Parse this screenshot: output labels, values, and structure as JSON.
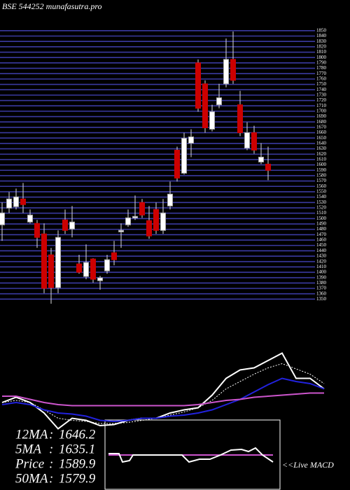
{
  "chart_data": [
    {
      "type": "candlestick",
      "title": "BSE 544252  munafasutra.pro",
      "open": [
        1488.4,
        1519.6,
        1522.2,
        1536.5,
        1493.6,
        1491,
        1471.5,
        1432.5,
        1371.4,
        1497.5,
        1480.6,
        1415.6,
        1392.2,
        1424.7,
        1384.4,
        1402.6,
        1436.4,
        1475.4,
        1488.4,
        1501.4,
        1530,
        1496.2,
        1517,
        1478,
        1523.5,
        1627.5,
        1584.6,
        1640.5,
        1790,
        1751,
        1666.5,
        1712,
        1751,
        1796.5,
        1712,
        1631.4,
        1660,
        1605.4,
        1601.5
      ],
      "high": [
        1530,
        1549.5,
        1556,
        1566.4,
        1517,
        1497.5,
        1491,
        1445.5,
        1478,
        1517,
        1523.5,
        1432.5,
        1452,
        1426,
        1393.5,
        1432.5,
        1458.5,
        1491,
        1517,
        1543,
        1536.5,
        1523.5,
        1530,
        1536.5,
        1569,
        1634,
        1660,
        1666.5,
        1796.5,
        1757.5,
        1712,
        1751,
        1835.5,
        1848.5,
        1738,
        1679.5,
        1673,
        1640.5,
        1634
      ],
      "low": [
        1458.5,
        1510.5,
        1517,
        1510.5,
        1491,
        1445.5,
        1361,
        1341.5,
        1361,
        1471.5,
        1465,
        1397.4,
        1387,
        1380.5,
        1367.5,
        1397.4,
        1413,
        1445.5,
        1484.5,
        1497.5,
        1501.4,
        1462.4,
        1471.5,
        1471.5,
        1517,
        1569,
        1582,
        1614.5,
        1699,
        1660,
        1662.6,
        1705.5,
        1744.5,
        1751,
        1653.5,
        1627.5,
        1621,
        1601.5,
        1571.6
      ],
      "close": [
        1510.5,
        1536.5,
        1540.4,
        1526.1,
        1506.6,
        1465,
        1370.1,
        1371.4,
        1465,
        1478,
        1493.6,
        1400,
        1418.2,
        1387,
        1389.6,
        1423.4,
        1423.4,
        1478,
        1501.4,
        1504,
        1506.6,
        1467.6,
        1478,
        1510.5,
        1545.6,
        1575.5,
        1649.6,
        1652.2,
        1705.5,
        1669.1,
        1699,
        1725,
        1796.5,
        1757.5,
        1660,
        1660,
        1627.5,
        1614.5,
        1589.9
      ],
      "up_color": "#ffffff",
      "down_color": "#cc0000",
      "grid": true,
      "grid_color": "#3a3aa0",
      "ylim": [
        1340,
        1855
      ],
      "yticks": [
        1350,
        1360,
        1370,
        1380,
        1390,
        1400,
        1410,
        1420,
        1430,
        1440,
        1450,
        1460,
        1470,
        1480,
        1490,
        1500,
        1510,
        1520,
        1530,
        1540,
        1550,
        1560,
        1570,
        1580,
        1590,
        1600,
        1610,
        1620,
        1630,
        1640,
        1650,
        1660,
        1670,
        1680,
        1690,
        1700,
        1710,
        1720,
        1730,
        1740,
        1750,
        1760,
        1770,
        1780,
        1790,
        1800,
        1810,
        1820,
        1830,
        1840,
        1850
      ]
    },
    {
      "type": "line",
      "ylim": [
        0,
        100
      ],
      "xlim": [
        0,
        23
      ],
      "x": [
        0,
        1,
        2,
        3,
        4,
        5,
        6,
        7,
        8,
        9,
        10,
        11,
        12,
        13,
        14,
        15,
        16,
        17,
        18,
        19,
        20,
        21,
        22,
        23
      ],
      "series": [
        {
          "color": "#ffffff",
          "dash": false,
          "values": [
            30,
            35,
            30,
            20,
            5,
            15,
            13,
            8,
            9,
            13,
            15,
            15,
            20,
            23,
            25,
            37,
            53,
            61,
            63,
            70,
            77,
            53,
            53,
            43
          ]
        },
        {
          "color": "#ffffff",
          "dash": true,
          "values": [
            30,
            32,
            30,
            23,
            15,
            13,
            12,
            10,
            10,
            11,
            13,
            15,
            18,
            21,
            25,
            32,
            43,
            50,
            57,
            63,
            67,
            62,
            57,
            48
          ]
        },
        {
          "color": "#2222dd",
          "dash": false,
          "values": [
            28,
            30,
            28,
            23,
            20,
            19,
            17,
            13,
            12,
            13,
            15,
            15,
            17,
            18,
            20,
            23,
            28,
            33,
            40,
            47,
            53,
            50,
            48,
            43
          ]
        },
        {
          "color": "#cc55cc",
          "dash": false,
          "values": [
            36,
            36,
            33,
            30,
            28,
            27,
            27,
            27,
            27,
            27,
            27,
            27,
            27,
            27,
            28,
            30,
            32,
            33,
            35,
            36,
            37,
            38,
            39,
            39
          ]
        }
      ]
    },
    {
      "type": "line",
      "title": "<<Live MACD",
      "xlim": [
        0,
        250
      ],
      "ylim": [
        0,
        100
      ],
      "x": [
        5,
        20,
        25,
        35,
        40,
        110,
        120,
        135,
        150,
        165,
        180,
        195,
        205,
        215,
        225,
        240
      ],
      "series": [
        {
          "color": "#cc55cc",
          "dash": false,
          "values": [
            50,
            50,
            50,
            50,
            50,
            50,
            50,
            50,
            50,
            50,
            50,
            50,
            50,
            50,
            50,
            50
          ]
        },
        {
          "color": "#ffffff",
          "dash": false,
          "values": [
            52,
            52,
            40,
            42,
            50,
            50,
            40,
            44,
            44,
            50,
            57,
            58,
            55,
            60,
            50,
            40
          ]
        }
      ]
    }
  ],
  "stats": [
    {
      "label": "12MA",
      "value": 1646.2
    },
    {
      "label": "5MA",
      "value": 1635.1
    },
    {
      "label": "Price",
      "value": 1589.9
    },
    {
      "label": "50MA",
      "value": 1579.9
    }
  ]
}
